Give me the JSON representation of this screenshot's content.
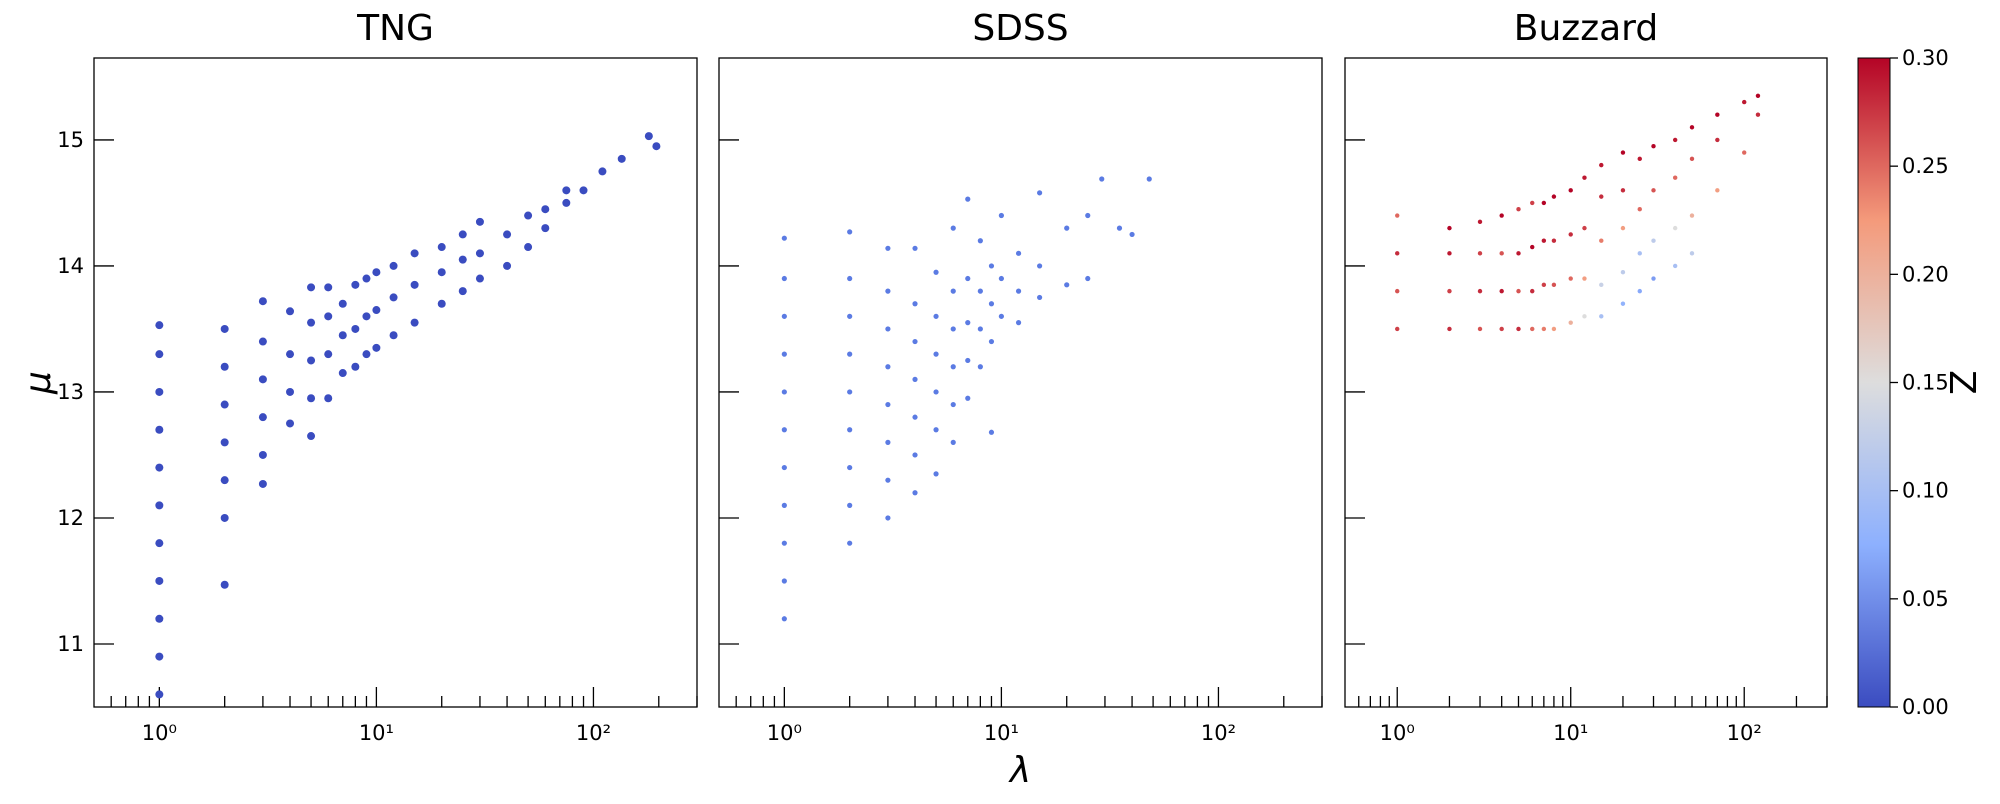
{
  "chart_data": [
    {
      "type": "scatter",
      "title": "TNG",
      "ylabel": "μ",
      "xscale": "log",
      "color": "#3a4cc0",
      "marker_size": 4,
      "xlim": [
        0.5,
        300
      ],
      "ylim": [
        10.5,
        15.65
      ],
      "xticks": [
        {
          "value": 1,
          "label": "10⁰"
        },
        {
          "value": 10,
          "label": "10¹"
        },
        {
          "value": 100,
          "label": "10²"
        }
      ],
      "xminorticks": [
        0.6,
        0.7,
        0.8,
        0.9,
        2,
        3,
        4,
        5,
        6,
        7,
        8,
        9,
        20,
        30,
        40,
        50,
        60,
        70,
        80,
        90,
        200,
        300
      ],
      "yticks": [
        11,
        12,
        13,
        14,
        15
      ],
      "show_yticklabels": true,
      "x": [
        1,
        1,
        1,
        1,
        1,
        1,
        1,
        1,
        1,
        1,
        1,
        2,
        2,
        2,
        2,
        2,
        2,
        2,
        3,
        3,
        3,
        3,
        3,
        3,
        4,
        4,
        4,
        4,
        5,
        5,
        5,
        5,
        5,
        6,
        6,
        6,
        6,
        7,
        7,
        7,
        8,
        8,
        8,
        9,
        9,
        9,
        10,
        10,
        10,
        12,
        12,
        12,
        15,
        15,
        15,
        20,
        20,
        20,
        25,
        25,
        25,
        30,
        30,
        30,
        40,
        40,
        50,
        50,
        60,
        60,
        75,
        75,
        90,
        110,
        135,
        180,
        195
      ],
      "y": [
        10.6,
        10.9,
        11.2,
        11.5,
        11.8,
        12.1,
        12.4,
        12.7,
        13.0,
        13.3,
        13.53,
        11.47,
        12.0,
        12.3,
        12.6,
        12.9,
        13.2,
        13.5,
        12.27,
        12.5,
        12.8,
        13.1,
        13.4,
        13.72,
        12.75,
        13.0,
        13.3,
        13.64,
        12.65,
        12.95,
        13.25,
        13.55,
        13.83,
        12.95,
        13.3,
        13.6,
        13.83,
        13.15,
        13.45,
        13.7,
        13.2,
        13.5,
        13.85,
        13.3,
        13.6,
        13.9,
        13.35,
        13.65,
        13.95,
        13.45,
        13.75,
        14.0,
        13.55,
        13.85,
        14.1,
        13.7,
        13.95,
        14.15,
        13.8,
        14.05,
        14.25,
        13.9,
        14.1,
        14.35,
        14.0,
        14.25,
        14.15,
        14.4,
        14.3,
        14.45,
        14.5,
        14.6,
        14.6,
        14.75,
        14.85,
        15.03,
        14.95
      ]
    },
    {
      "type": "scatter",
      "title": "SDSS",
      "xlabel": "λ",
      "xscale": "log",
      "color": "#5b7be3",
      "marker_size": 2.6,
      "xlim": [
        0.5,
        300
      ],
      "ylim": [
        10.5,
        15.65
      ],
      "xticks": [
        {
          "value": 1,
          "label": "10⁰"
        },
        {
          "value": 10,
          "label": "10¹"
        },
        {
          "value": 100,
          "label": "10²"
        }
      ],
      "xminorticks": [
        0.6,
        0.7,
        0.8,
        0.9,
        2,
        3,
        4,
        5,
        6,
        7,
        8,
        9,
        20,
        30,
        40,
        50,
        60,
        70,
        80,
        90,
        200,
        300
      ],
      "yticks": [
        11,
        12,
        13,
        14,
        15
      ],
      "show_yticklabels": false,
      "x": [
        1,
        1,
        1,
        1,
        1,
        1,
        1,
        1,
        1,
        1,
        1,
        2,
        2,
        2,
        2,
        2,
        2,
        2,
        2,
        2,
        3,
        3,
        3,
        3,
        3,
        3,
        3,
        3,
        4,
        4,
        4,
        4,
        4,
        4,
        4,
        5,
        5,
        5,
        5,
        5,
        5,
        6,
        6,
        6,
        6,
        6,
        6,
        7,
        7,
        7,
        7,
        7,
        8,
        8,
        8,
        8,
        9,
        9,
        9,
        9,
        10,
        10,
        10,
        12,
        12,
        12,
        15,
        15,
        15,
        20,
        20,
        25,
        25,
        29,
        35,
        40,
        48
      ],
      "y": [
        11.2,
        11.5,
        11.8,
        12.1,
        12.4,
        12.7,
        13.0,
        13.3,
        13.6,
        13.9,
        14.22,
        11.8,
        12.1,
        12.4,
        12.7,
        13.0,
        13.3,
        13.6,
        13.9,
        14.27,
        12.0,
        12.3,
        12.6,
        12.9,
        13.2,
        13.5,
        13.8,
        14.14,
        12.2,
        12.5,
        12.8,
        13.1,
        13.4,
        13.7,
        14.14,
        12.35,
        12.7,
        13.0,
        13.3,
        13.6,
        13.95,
        12.6,
        12.9,
        13.2,
        13.5,
        13.8,
        14.3,
        12.95,
        13.25,
        13.55,
        13.9,
        14.53,
        13.2,
        13.5,
        13.8,
        14.2,
        12.68,
        13.4,
        13.7,
        14.0,
        13.6,
        13.9,
        14.4,
        13.55,
        13.8,
        14.1,
        13.75,
        14.0,
        14.58,
        13.85,
        14.3,
        13.9,
        14.4,
        14.69,
        14.3,
        14.25,
        14.69
      ]
    },
    {
      "type": "scatter",
      "title": "Buzzard",
      "xscale": "log",
      "marker_size": 2.2,
      "xlim": [
        0.5,
        300
      ],
      "ylim": [
        10.5,
        15.65
      ],
      "xticks": [
        {
          "value": 1,
          "label": "10⁰"
        },
        {
          "value": 10,
          "label": "10¹"
        },
        {
          "value": 100,
          "label": "10²"
        }
      ],
      "xminorticks": [
        0.6,
        0.7,
        0.8,
        0.9,
        2,
        3,
        4,
        5,
        6,
        7,
        8,
        9,
        20,
        30,
        40,
        50,
        60,
        70,
        80,
        90,
        200,
        300
      ],
      "yticks": [
        11,
        12,
        13,
        14,
        15
      ],
      "show_yticklabels": false,
      "x": [
        1,
        1,
        1,
        1,
        2,
        2,
        2,
        2,
        3,
        3,
        3,
        3,
        4,
        4,
        4,
        4,
        5,
        5,
        5,
        5,
        6,
        6,
        6,
        6,
        7,
        7,
        7,
        7,
        8,
        8,
        8,
        8,
        10,
        10,
        10,
        10,
        12,
        12,
        12,
        12,
        15,
        15,
        15,
        15,
        15,
        20,
        20,
        20,
        20,
        20,
        25,
        25,
        25,
        25,
        30,
        30,
        30,
        30,
        40,
        40,
        40,
        40,
        50,
        50,
        50,
        50,
        70,
        70,
        70,
        100,
        100,
        120,
        120
      ],
      "y": [
        13.5,
        13.8,
        14.1,
        14.4,
        13.5,
        13.8,
        14.1,
        14.3,
        13.5,
        13.8,
        14.1,
        14.35,
        13.5,
        13.8,
        14.1,
        14.4,
        13.5,
        13.8,
        14.1,
        14.45,
        13.5,
        13.8,
        14.15,
        14.5,
        13.5,
        13.85,
        14.2,
        14.5,
        13.5,
        13.85,
        14.2,
        14.55,
        13.55,
        13.9,
        14.25,
        14.6,
        13.6,
        13.9,
        14.3,
        14.7,
        13.6,
        13.85,
        14.2,
        14.55,
        14.8,
        13.7,
        13.95,
        14.3,
        14.6,
        14.9,
        13.8,
        14.1,
        14.45,
        14.85,
        13.9,
        14.2,
        14.6,
        14.95,
        14.0,
        14.3,
        14.7,
        15.0,
        14.1,
        14.4,
        14.85,
        15.1,
        14.6,
        15.0,
        15.2,
        14.9,
        15.3,
        15.2,
        15.35
      ],
      "z": [
        0.27,
        0.26,
        0.28,
        0.25,
        0.28,
        0.27,
        0.29,
        0.3,
        0.26,
        0.28,
        0.27,
        0.29,
        0.27,
        0.29,
        0.26,
        0.3,
        0.28,
        0.26,
        0.29,
        0.27,
        0.25,
        0.28,
        0.3,
        0.27,
        0.24,
        0.27,
        0.29,
        0.3,
        0.22,
        0.26,
        0.28,
        0.3,
        0.2,
        0.25,
        0.28,
        0.3,
        0.15,
        0.22,
        0.27,
        0.29,
        0.1,
        0.13,
        0.24,
        0.28,
        0.29,
        0.08,
        0.12,
        0.22,
        0.28,
        0.3,
        0.07,
        0.1,
        0.25,
        0.29,
        0.06,
        0.12,
        0.26,
        0.3,
        0.1,
        0.15,
        0.25,
        0.29,
        0.12,
        0.2,
        0.26,
        0.3,
        0.22,
        0.28,
        0.3,
        0.25,
        0.29,
        0.28,
        0.3
      ],
      "colorbar": {
        "label": "Z",
        "lim": [
          0,
          0.3
        ],
        "cmap": [
          "#3b4cc0",
          "#8db0fe",
          "#dddddd",
          "#f49a7b",
          "#b40426"
        ],
        "ticks": [
          {
            "value": 0,
            "label": "0.00"
          },
          {
            "value": 0.05,
            "label": "0.05"
          },
          {
            "value": 0.1,
            "label": "0.10"
          },
          {
            "value": 0.15,
            "label": "0.15"
          },
          {
            "value": 0.2,
            "label": "0.20"
          },
          {
            "value": 0.25,
            "label": "0.25"
          },
          {
            "value": 0.3,
            "label": "0.30"
          }
        ]
      }
    }
  ]
}
